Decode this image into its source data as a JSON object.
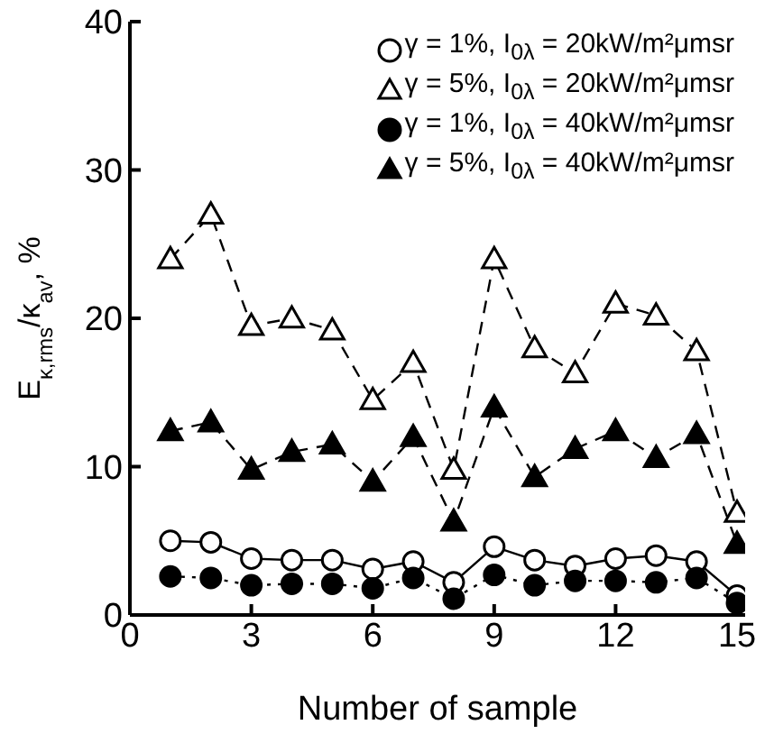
{
  "chart_data": {
    "type": "line",
    "xlabel": "Number of sample",
    "ylabel": "E$_{κ,rms}$/κ$_{av}$, %",
    "x": [
      1,
      2,
      3,
      4,
      5,
      6,
      7,
      8,
      9,
      10,
      11,
      12,
      13,
      14,
      15
    ],
    "xlim": [
      0,
      15.2
    ],
    "xticks": [
      0,
      3,
      6,
      9,
      12,
      15
    ],
    "ylim": [
      0,
      40
    ],
    "yticks": [
      0,
      10,
      20,
      30,
      40
    ],
    "legend": "top right",
    "series": [
      {
        "name": "γ = 1%, I$_{0λ}$ = 20kW/m²μmsr",
        "color": "#ffffff",
        "marker": "circle",
        "line_style": "solid",
        "values": [
          5.0,
          4.9,
          3.8,
          3.7,
          3.7,
          3.1,
          3.6,
          2.2,
          4.6,
          3.7,
          3.3,
          3.8,
          4.0,
          3.6,
          1.3
        ]
      },
      {
        "name": "γ = 5%, I$_{0λ}$ = 20kW/m²μmsr",
        "color": "#ffffff",
        "marker": "triangle",
        "line_style": "dashed",
        "values": [
          24,
          27,
          19.5,
          20,
          19.2,
          14.5,
          17,
          9.8,
          24,
          18,
          16.3,
          21,
          20.2,
          17.8,
          6.9
        ]
      },
      {
        "name": "γ = 1%, I$_{0λ}$ = 40kW/m²μmsr",
        "color": "#000000",
        "marker": "circle",
        "line_style": "dotted",
        "values": [
          2.6,
          2.5,
          2.0,
          2.1,
          2.1,
          1.8,
          2.5,
          1.1,
          2.7,
          2.0,
          2.3,
          2.3,
          2.2,
          2.5,
          0.8
        ]
      },
      {
        "name": "γ = 5%, I$_{0λ}$ = 40kW/m²μmsr",
        "color": "#000000",
        "marker": "triangle",
        "line_style": "dashed",
        "values": [
          12.4,
          13,
          9.8,
          11,
          11.5,
          9,
          12,
          6.3,
          14,
          9.3,
          11.2,
          12.4,
          10.6,
          12.2,
          4.8
        ]
      }
    ]
  }
}
